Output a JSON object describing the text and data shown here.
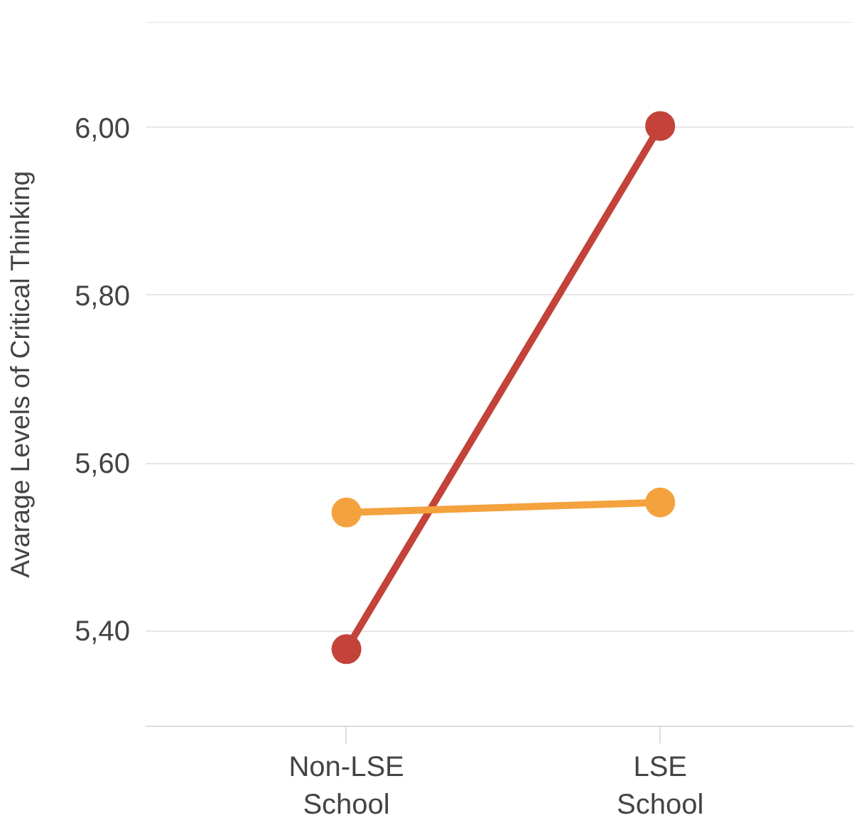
{
  "chart_data": {
    "type": "line",
    "ylabel": "Avarage Levels of Critical Thinking",
    "categories": [
      "Non-LSE School",
      "LSE School"
    ],
    "series": [
      {
        "color": "#c3433a",
        "values": [
          5.378,
          6.002
        ]
      },
      {
        "color": "#f4a23e",
        "values": [
          5.541,
          5.553
        ]
      }
    ],
    "ylim": [
      5.286,
      6.126
    ],
    "yticks": [
      {
        "value": 5.4,
        "label": "5,40"
      },
      {
        "value": 5.6,
        "label": "5,60"
      },
      {
        "value": 5.8,
        "label": "5,80"
      },
      {
        "value": 6.0,
        "label": "6,00"
      }
    ],
    "grid": "y",
    "marker": "circle",
    "line_style": "solid"
  }
}
